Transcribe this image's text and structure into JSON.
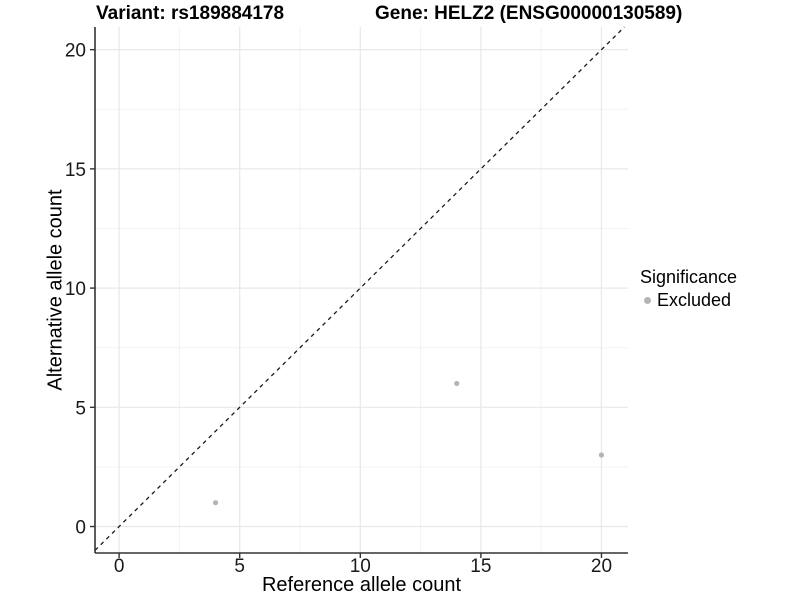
{
  "titles": {
    "left": "Variant: rs189884178",
    "right": "Gene: HELZ2 (ENSG00000130589)"
  },
  "chart_data": {
    "type": "scatter",
    "xlabel": "Reference allele count",
    "ylabel": "Alternative allele count",
    "xticks": [
      0,
      5,
      10,
      15,
      20
    ],
    "yticks": [
      0,
      5,
      10,
      15,
      20
    ],
    "xminor": [
      2.5,
      7.5,
      12.5,
      17.5
    ],
    "yminor": [
      2.5,
      7.5,
      12.5,
      17.5
    ],
    "xlim": [
      -1.0,
      21.1
    ],
    "ylim": [
      -1.11,
      20.95
    ],
    "grid": true,
    "identity_line": {
      "slope": 1,
      "intercept": 0,
      "style": "dashed"
    },
    "series": [
      {
        "name": "Excluded",
        "color": "#b4b4b4",
        "points": [
          {
            "x": 4,
            "y": 1
          },
          {
            "x": 14,
            "y": 6
          },
          {
            "x": 20,
            "y": 3
          }
        ]
      }
    ],
    "legend": {
      "title": "Significance",
      "position": "right",
      "items": [
        {
          "label": "Excluded",
          "color": "#b4b4b4"
        }
      ]
    }
  },
  "colors": {
    "background": "#ffffff",
    "grid_major": "#e8e8e8",
    "grid_minor": "#f3f3f3",
    "axis_line": "#333333",
    "tick_mark": "#333333",
    "tick_text": "#1a1a1a",
    "identity_line": "#1a1a1a",
    "text": "#000000"
  }
}
